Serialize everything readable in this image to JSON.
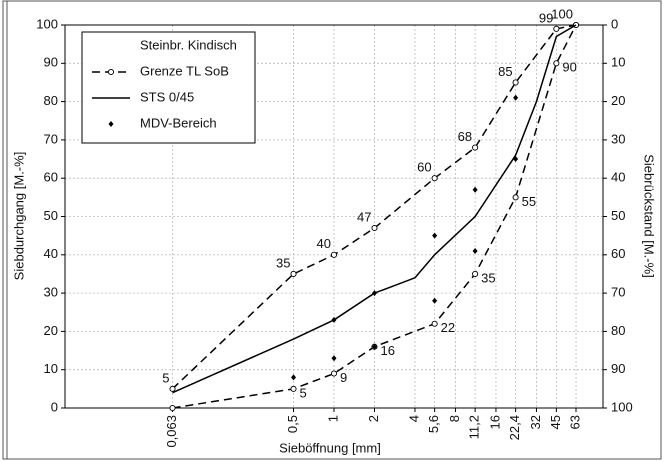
{
  "chart_data": {
    "type": "line",
    "ylabel": "Siebdurchgang  [M.-%]",
    "y2label": "Siebrückstand [M.-%]",
    "xlabel": "Sieböffnung      [mm]",
    "legend_title": "Steinbr. Kindisch",
    "legend": "upper left",
    "log_x": true,
    "grid": true,
    "xlim": [
      0.01,
      100
    ],
    "xticks": [
      {
        "value": 0.063,
        "label": "0,063"
      },
      {
        "value": 0.5,
        "label": "0,5"
      },
      1,
      2,
      4,
      {
        "value": 5.6,
        "label": "5,6"
      },
      8,
      {
        "value": 11.2,
        "label": "11,2"
      },
      16,
      {
        "value": 22.4,
        "label": "22,4"
      },
      32,
      45,
      63
    ],
    "ylim": [
      0,
      100
    ],
    "yticks": [
      0,
      10,
      20,
      30,
      40,
      50,
      60,
      70,
      80,
      90,
      100
    ],
    "y2lim": [
      100,
      0
    ],
    "y2ticks": [
      0,
      10,
      20,
      30,
      40,
      50,
      60,
      70,
      80,
      90,
      100
    ],
    "series": [
      {
        "name": "Grenze TL SoB",
        "color": "#000000",
        "dashed": true,
        "marker": "circle",
        "line": true,
        "x": [
          0.063,
          0.5,
          1,
          2,
          5.6,
          11.2,
          22.4,
          45,
          63
        ],
        "values": [
          5,
          35,
          40,
          47,
          60,
          68,
          85,
          99,
          100
        ],
        "value_labels": [
          "5",
          "35",
          "40",
          "47",
          "60",
          "68",
          "85",
          "99",
          "100"
        ],
        "lower": {
          "x": [
            0.063,
            0.5,
            1,
            2,
            5.6,
            11.2,
            22.4,
            45,
            63
          ],
          "values": [
            0,
            5,
            9,
            16,
            22,
            35,
            55,
            90,
            100
          ],
          "value_labels": [
            null,
            "5",
            "9",
            "16",
            "22",
            "35",
            "55",
            "90",
            null
          ]
        }
      },
      {
        "name": "STS 0/45",
        "color": "#000000",
        "dashed": false,
        "marker": null,
        "line": true,
        "x": [
          0.063,
          0.5,
          1,
          2,
          4,
          5.6,
          11.2,
          22.4,
          32,
          45,
          63
        ],
        "values": [
          4,
          18,
          23,
          30,
          34,
          40,
          50,
          66,
          80,
          97,
          100
        ]
      },
      {
        "name": "MDV-Bereich",
        "color": "#000000",
        "dashed": false,
        "marker": "diamond",
        "line": false,
        "x": [
          0.5,
          1,
          1,
          2,
          2,
          5.6,
          5.6,
          11.2,
          11.2,
          22.4,
          22.4
        ],
        "values": [
          8,
          13,
          23,
          16,
          30,
          28,
          45,
          41,
          57,
          65,
          81
        ]
      }
    ]
  }
}
